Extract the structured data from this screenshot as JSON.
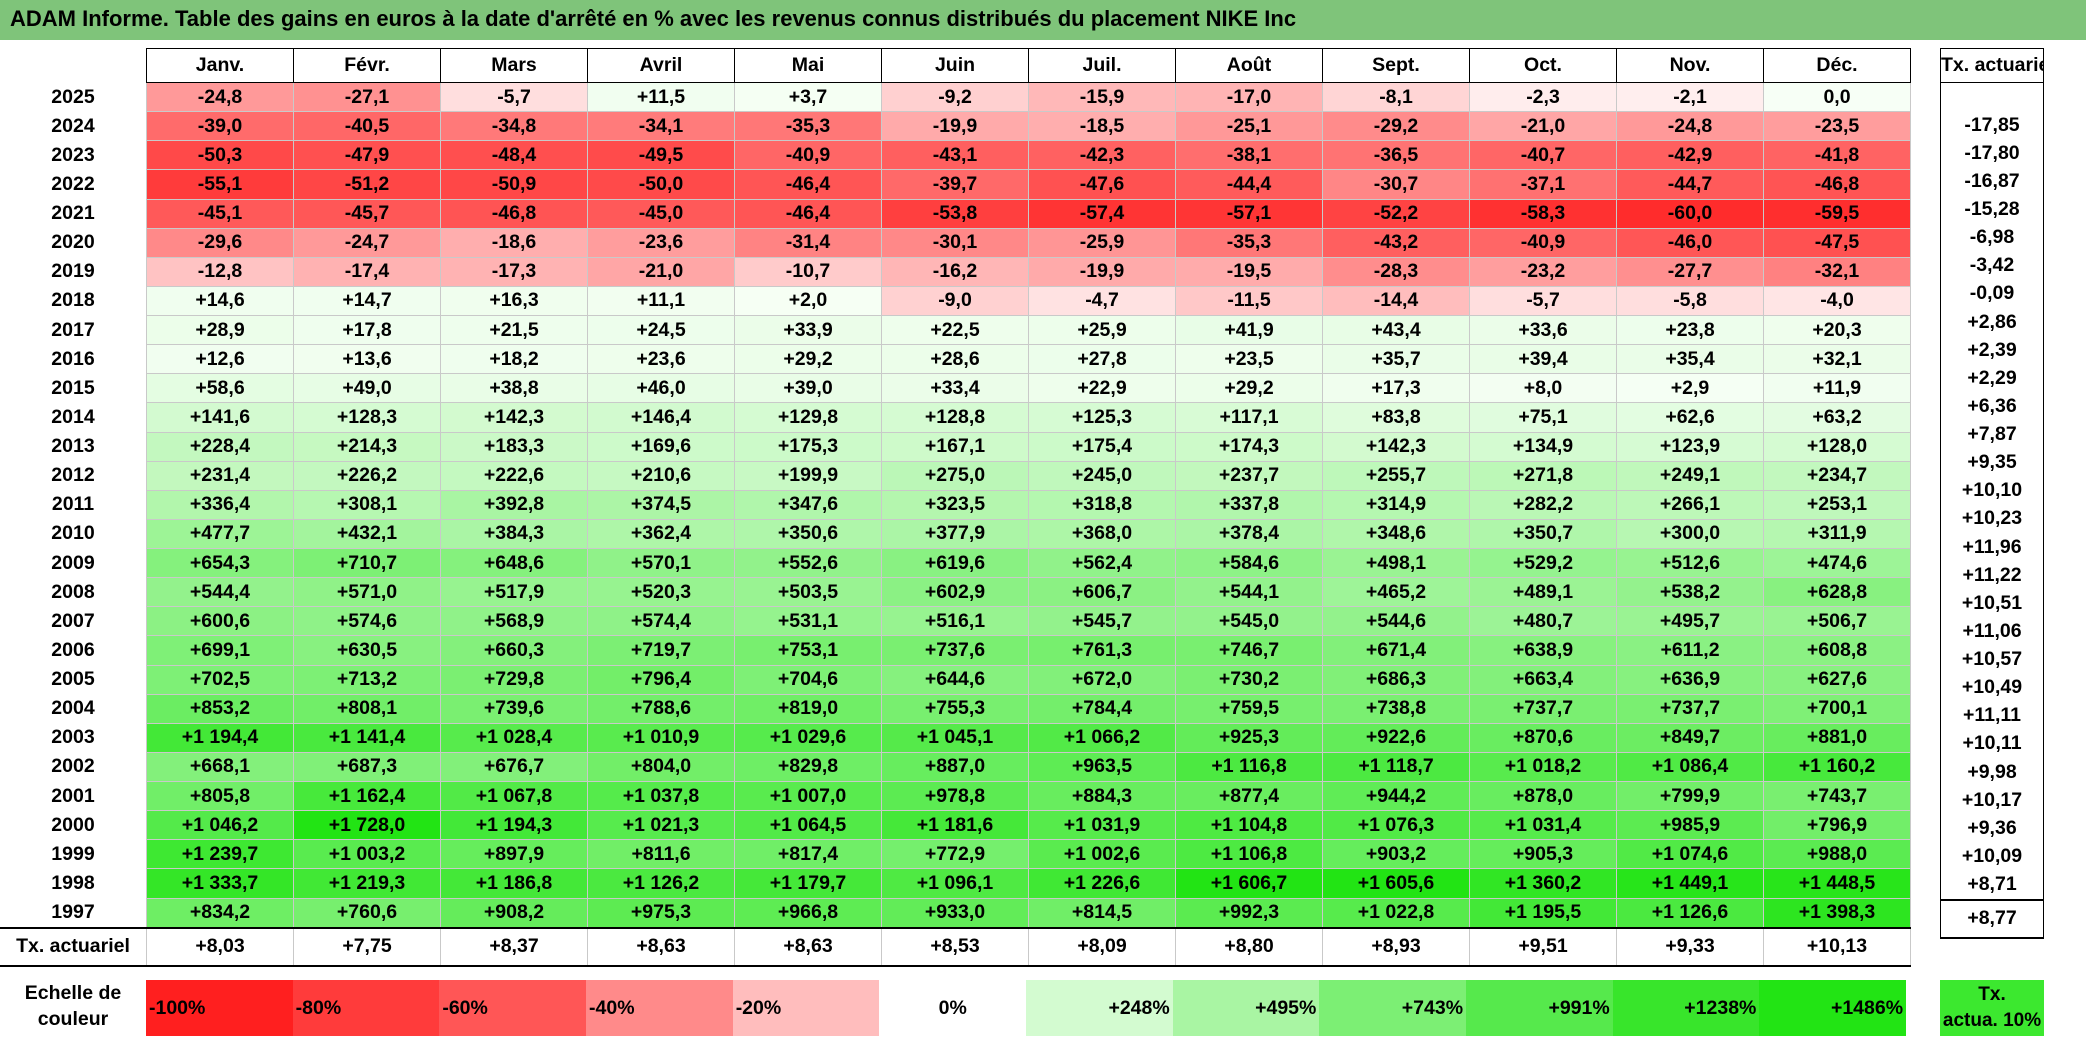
{
  "title": "ADAM Informe. Table des gains en euros à la date d'arrêté en % avec les revenus connus distribués du placement NIKE Inc",
  "months": [
    "Janv.",
    "Févr.",
    "Mars",
    "Avril",
    "Mai",
    "Juin",
    "Juil.",
    "Août",
    "Sept.",
    "Oct.",
    "Nov.",
    "Déc."
  ],
  "side_header": "Tx. actuariel",
  "rows": [
    {
      "year": "2025",
      "values": [
        "-24,8",
        "-27,1",
        "-5,7",
        "+11,5",
        "+3,7",
        "-9,2",
        "-15,9",
        "-17,0",
        "-8,1",
        "-2,3",
        "-2,1",
        "0,0"
      ],
      "tx": ""
    },
    {
      "year": "2024",
      "values": [
        "-39,0",
        "-40,5",
        "-34,8",
        "-34,1",
        "-35,3",
        "-19,9",
        "-18,5",
        "-25,1",
        "-29,2",
        "-21,0",
        "-24,8",
        "-23,5"
      ],
      "tx": "-17,85"
    },
    {
      "year": "2023",
      "values": [
        "-50,3",
        "-47,9",
        "-48,4",
        "-49,5",
        "-40,9",
        "-43,1",
        "-42,3",
        "-38,1",
        "-36,5",
        "-40,7",
        "-42,9",
        "-41,8"
      ],
      "tx": "-17,80"
    },
    {
      "year": "2022",
      "values": [
        "-55,1",
        "-51,2",
        "-50,9",
        "-50,0",
        "-46,4",
        "-39,7",
        "-47,6",
        "-44,4",
        "-30,7",
        "-37,1",
        "-44,7",
        "-46,8"
      ],
      "tx": "-16,87"
    },
    {
      "year": "2021",
      "values": [
        "-45,1",
        "-45,7",
        "-46,8",
        "-45,0",
        "-46,4",
        "-53,8",
        "-57,4",
        "-57,1",
        "-52,2",
        "-58,3",
        "-60,0",
        "-59,5"
      ],
      "tx": "-15,28"
    },
    {
      "year": "2020",
      "values": [
        "-29,6",
        "-24,7",
        "-18,6",
        "-23,6",
        "-31,4",
        "-30,1",
        "-25,9",
        "-35,3",
        "-43,2",
        "-40,9",
        "-46,0",
        "-47,5"
      ],
      "tx": "-6,98"
    },
    {
      "year": "2019",
      "values": [
        "-12,8",
        "-17,4",
        "-17,3",
        "-21,0",
        "-10,7",
        "-16,2",
        "-19,9",
        "-19,5",
        "-28,3",
        "-23,2",
        "-27,7",
        "-32,1"
      ],
      "tx": "-3,42"
    },
    {
      "year": "2018",
      "values": [
        "+14,6",
        "+14,7",
        "+16,3",
        "+11,1",
        "+2,0",
        "-9,0",
        "-4,7",
        "-11,5",
        "-14,4",
        "-5,7",
        "-5,8",
        "-4,0"
      ],
      "tx": "-0,09"
    },
    {
      "year": "2017",
      "values": [
        "+28,9",
        "+17,8",
        "+21,5",
        "+24,5",
        "+33,9",
        "+22,5",
        "+25,9",
        "+41,9",
        "+43,4",
        "+33,6",
        "+23,8",
        "+20,3"
      ],
      "tx": "+2,86"
    },
    {
      "year": "2016",
      "values": [
        "+12,6",
        "+13,6",
        "+18,2",
        "+23,6",
        "+29,2",
        "+28,6",
        "+27,8",
        "+23,5",
        "+35,7",
        "+39,4",
        "+35,4",
        "+32,1"
      ],
      "tx": "+2,39"
    },
    {
      "year": "2015",
      "values": [
        "+58,6",
        "+49,0",
        "+38,8",
        "+46,0",
        "+39,0",
        "+33,4",
        "+22,9",
        "+29,2",
        "+17,3",
        "+8,0",
        "+2,9",
        "+11,9"
      ],
      "tx": "+2,29"
    },
    {
      "year": "2014",
      "values": [
        "+141,6",
        "+128,3",
        "+142,3",
        "+146,4",
        "+129,8",
        "+128,8",
        "+125,3",
        "+117,1",
        "+83,8",
        "+75,1",
        "+62,6",
        "+63,2"
      ],
      "tx": "+6,36"
    },
    {
      "year": "2013",
      "values": [
        "+228,4",
        "+214,3",
        "+183,3",
        "+169,6",
        "+175,3",
        "+167,1",
        "+175,4",
        "+174,3",
        "+142,3",
        "+134,9",
        "+123,9",
        "+128,0"
      ],
      "tx": "+7,87"
    },
    {
      "year": "2012",
      "values": [
        "+231,4",
        "+226,2",
        "+222,6",
        "+210,6",
        "+199,9",
        "+275,0",
        "+245,0",
        "+237,7",
        "+255,7",
        "+271,8",
        "+249,1",
        "+234,7"
      ],
      "tx": "+9,35"
    },
    {
      "year": "2011",
      "values": [
        "+336,4",
        "+308,1",
        "+392,8",
        "+374,5",
        "+347,6",
        "+323,5",
        "+318,8",
        "+337,8",
        "+314,9",
        "+282,2",
        "+266,1",
        "+253,1"
      ],
      "tx": "+10,10"
    },
    {
      "year": "2010",
      "values": [
        "+477,7",
        "+432,1",
        "+384,3",
        "+362,4",
        "+350,6",
        "+377,9",
        "+368,0",
        "+378,4",
        "+348,6",
        "+350,7",
        "+300,0",
        "+311,9"
      ],
      "tx": "+10,23"
    },
    {
      "year": "2009",
      "values": [
        "+654,3",
        "+710,7",
        "+648,6",
        "+570,1",
        "+552,6",
        "+619,6",
        "+562,4",
        "+584,6",
        "+498,1",
        "+529,2",
        "+512,6",
        "+474,6"
      ],
      "tx": "+11,96"
    },
    {
      "year": "2008",
      "values": [
        "+544,4",
        "+571,0",
        "+517,9",
        "+520,3",
        "+503,5",
        "+602,9",
        "+606,7",
        "+544,1",
        "+465,2",
        "+489,1",
        "+538,2",
        "+628,8"
      ],
      "tx": "+11,22"
    },
    {
      "year": "2007",
      "values": [
        "+600,6",
        "+574,6",
        "+568,9",
        "+574,4",
        "+531,1",
        "+516,1",
        "+545,7",
        "+545,0",
        "+544,6",
        "+480,7",
        "+495,7",
        "+506,7"
      ],
      "tx": "+10,51"
    },
    {
      "year": "2006",
      "values": [
        "+699,1",
        "+630,5",
        "+660,3",
        "+719,7",
        "+753,1",
        "+737,6",
        "+761,3",
        "+746,7",
        "+671,4",
        "+638,9",
        "+611,2",
        "+608,8"
      ],
      "tx": "+11,06"
    },
    {
      "year": "2005",
      "values": [
        "+702,5",
        "+713,2",
        "+729,8",
        "+796,4",
        "+704,6",
        "+644,6",
        "+672,0",
        "+730,2",
        "+686,3",
        "+663,4",
        "+636,9",
        "+627,6"
      ],
      "tx": "+10,57"
    },
    {
      "year": "2004",
      "values": [
        "+853,2",
        "+808,1",
        "+739,6",
        "+788,6",
        "+819,0",
        "+755,3",
        "+784,4",
        "+759,5",
        "+738,8",
        "+737,7",
        "+737,7",
        "+700,1"
      ],
      "tx": "+10,49"
    },
    {
      "year": "2003",
      "values": [
        "+1 194,4",
        "+1 141,4",
        "+1 028,4",
        "+1 010,9",
        "+1 029,6",
        "+1 045,1",
        "+1 066,2",
        "+925,3",
        "+922,6",
        "+870,6",
        "+849,7",
        "+881,0"
      ],
      "tx": "+11,11"
    },
    {
      "year": "2002",
      "values": [
        "+668,1",
        "+687,3",
        "+676,7",
        "+804,0",
        "+829,8",
        "+887,0",
        "+963,5",
        "+1 116,8",
        "+1 118,7",
        "+1 018,2",
        "+1 086,4",
        "+1 160,2"
      ],
      "tx": "+10,11"
    },
    {
      "year": "2001",
      "values": [
        "+805,8",
        "+1 162,4",
        "+1 067,8",
        "+1 037,8",
        "+1 007,0",
        "+978,8",
        "+884,3",
        "+877,4",
        "+944,2",
        "+878,0",
        "+799,9",
        "+743,7"
      ],
      "tx": "+9,98"
    },
    {
      "year": "2000",
      "values": [
        "+1 046,2",
        "+1 728,0",
        "+1 194,3",
        "+1 021,3",
        "+1 064,5",
        "+1 181,6",
        "+1 031,9",
        "+1 104,8",
        "+1 076,3",
        "+1 031,4",
        "+985,9",
        "+796,9"
      ],
      "tx": "+10,17"
    },
    {
      "year": "1999",
      "values": [
        "+1 239,7",
        "+1 003,2",
        "+897,9",
        "+811,6",
        "+817,4",
        "+772,9",
        "+1 002,6",
        "+1 106,8",
        "+903,2",
        "+905,3",
        "+1 074,6",
        "+988,0"
      ],
      "tx": "+9,36"
    },
    {
      "year": "1998",
      "values": [
        "+1 333,7",
        "+1 219,3",
        "+1 186,8",
        "+1 126,2",
        "+1 179,7",
        "+1 096,1",
        "+1 226,6",
        "+1 606,7",
        "+1 605,6",
        "+1 360,2",
        "+1 449,1",
        "+1 448,5"
      ],
      "tx": "+10,09"
    },
    {
      "year": "1997",
      "values": [
        "+834,2",
        "+760,6",
        "+908,2",
        "+975,3",
        "+966,8",
        "+933,0",
        "+814,5",
        "+992,3",
        "+1 022,8",
        "+1 195,5",
        "+1 126,6",
        "+1 398,3"
      ],
      "tx": "+8,71"
    }
  ],
  "annual": {
    "label": "Tx. actuariel",
    "values": [
      "+8,03",
      "+7,75",
      "+8,37",
      "+8,63",
      "+8,63",
      "+8,53",
      "+8,09",
      "+8,80",
      "+8,93",
      "+9,51",
      "+9,33",
      "+10,13"
    ],
    "total": "+8,77"
  },
  "scale": {
    "label_line1": "Echelle de",
    "label_line2": "couleur",
    "swatches": [
      {
        "label": "-100%",
        "color": "#ff1f1f"
      },
      {
        "label": "-80%",
        "color": "#ff3b3b"
      },
      {
        "label": "-60%",
        "color": "#ff5656"
      },
      {
        "label": "-40%",
        "color": "#ff8a8a"
      },
      {
        "label": "-20%",
        "color": "#ffbdbd"
      },
      {
        "label": "0%",
        "color": "#ffffff"
      },
      {
        "label": "+248%",
        "color": "#d3fbd0"
      },
      {
        "label": "+495%",
        "color": "#a9f5a3"
      },
      {
        "label": "+743%",
        "color": "#7cef74"
      },
      {
        "label": "+991%",
        "color": "#56e94c"
      },
      {
        "label": "+1238%",
        "color": "#38e52b"
      },
      {
        "label": "+1486%",
        "color": "#22e414"
      }
    ],
    "tx_line1": "Tx.",
    "tx_line2": "actua. 10%",
    "tx_color": "#3ce82f"
  }
}
